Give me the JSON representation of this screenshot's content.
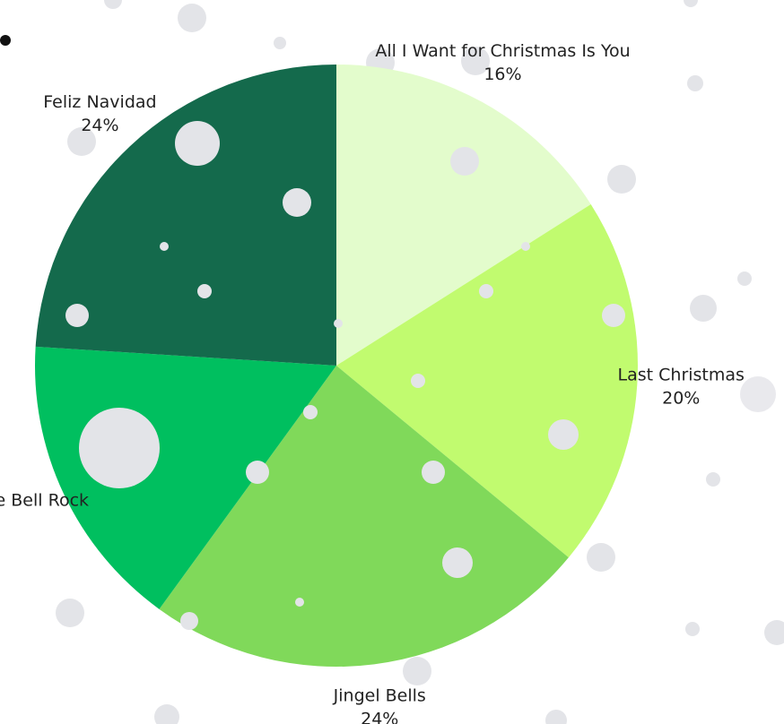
{
  "chart_data": {
    "type": "pie",
    "categories": [
      "All I Want for Christmas Is You",
      "Last Christmas",
      "Jingel Bells",
      "Jingle Bell Rock",
      "Feliz Navidad"
    ],
    "values": [
      16,
      20,
      24,
      16,
      24
    ],
    "value_labels": [
      "16%",
      "20%",
      "24%",
      null,
      "24%"
    ],
    "colors": [
      "#e3fccc",
      "#c1fb6f",
      "#80d95a",
      "#00bf5f",
      "#146a4c"
    ]
  }
}
